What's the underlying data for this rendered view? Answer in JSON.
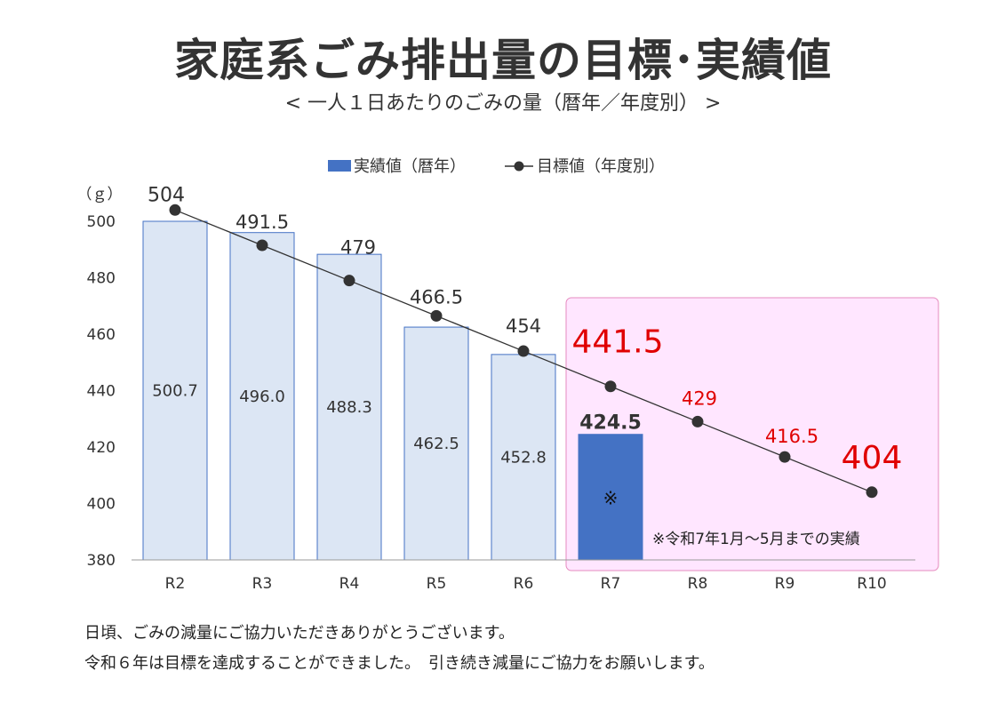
{
  "title": "家庭系ごみ排出量の目標･実績値",
  "subtitle": "< 一人１日あたりのごみの量（暦年／年度別） >",
  "notes": [
    "日頃、ごみの減量にご協力いただきありがとうございます。",
    "令和６年は目標を達成することができました。　引き続き減量にご協力をお願いします。"
  ],
  "chart_data": {
    "type": "bar",
    "categories": [
      "R2",
      "R3",
      "R4",
      "R5",
      "R6",
      "R7",
      "R8",
      "R9",
      "R10"
    ],
    "ylabel": "（ｇ）",
    "ylim": [
      380,
      500
    ],
    "yticks": [
      380,
      400,
      420,
      440,
      460,
      480,
      500
    ],
    "legend_position": "top-center",
    "series": [
      {
        "name": "実績値（暦年）",
        "kind": "bar",
        "values": [
          500.7,
          496.0,
          488.3,
          462.5,
          452.8,
          424.5,
          null,
          null,
          null
        ],
        "labels": [
          "500.7",
          "496.0",
          "488.3",
          "462.5",
          "452.8",
          "424.5",
          "",
          "",
          ""
        ],
        "color": "#dce6f4",
        "highlight_color": "#4472c4",
        "border_color": "#4472c4"
      },
      {
        "name": "目標値（年度別）",
        "kind": "line",
        "values": [
          504,
          491.5,
          479,
          466.5,
          454,
          441.5,
          429,
          416.5,
          404
        ],
        "labels": [
          "504",
          "491.5",
          "479",
          "466.5",
          "454",
          "441.5",
          "429",
          "416.5",
          "404"
        ],
        "color": "#333333",
        "future_label_color": "#e00000"
      }
    ],
    "bar_marker": "※",
    "annotation": "※令和7年1月～5月までの実績",
    "highlight_region_color": "#ffe6ff",
    "highlight_region_border": "#e68bbf"
  }
}
